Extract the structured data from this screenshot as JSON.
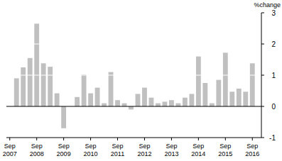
{
  "chart_data": {
    "type": "bar",
    "y_label": "%change",
    "categories": [
      "Sep 2007",
      null,
      null,
      null,
      "Sep 2008",
      null,
      null,
      null,
      "Sep 2009",
      null,
      null,
      null,
      "Sep 2010",
      null,
      null,
      null,
      "Sep 2011",
      null,
      null,
      null,
      "Sep 2012",
      null,
      null,
      null,
      "Sep 2013",
      null,
      null,
      null,
      "Sep 2014",
      null,
      null,
      null,
      "Sep 2015",
      null,
      null,
      null,
      "Sep 2016"
    ],
    "values": [
      null,
      0.9,
      1.25,
      1.55,
      2.65,
      1.38,
      1.27,
      0.42,
      -0.7,
      0,
      0.3,
      1.02,
      0.42,
      0.6,
      0.1,
      1.1,
      0.2,
      0.1,
      -0.1,
      0.4,
      0.6,
      0.28,
      0.1,
      0.15,
      0.2,
      0.1,
      0.28,
      0.4,
      1.6,
      0.75,
      0.1,
      0.85,
      1.72,
      0.47,
      0.57,
      0.47,
      1.38
    ],
    "color": "#c0c0c0",
    "ylim": [
      -1,
      3
    ],
    "yticks": [
      -1,
      0,
      1,
      2,
      3
    ],
    "grid": true
  }
}
